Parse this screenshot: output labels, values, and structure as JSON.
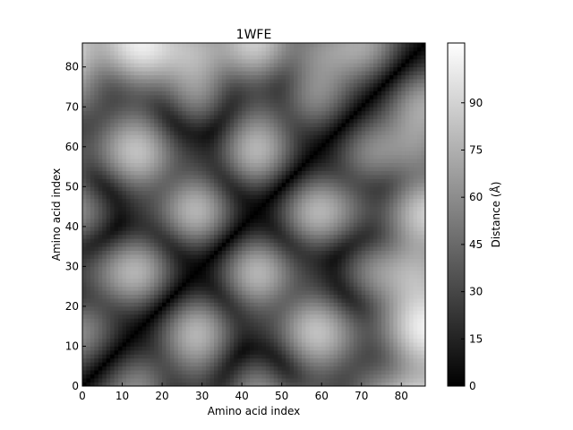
{
  "chart_data": {
    "type": "heatmap",
    "title": "1WFE",
    "xlabel": "Amino acid index",
    "ylabel": "Amino acid index",
    "n_residues": 86,
    "xlim": [
      0,
      86
    ],
    "ylim": [
      0,
      86
    ],
    "xticks": [
      0,
      10,
      20,
      30,
      40,
      50,
      60,
      70,
      80
    ],
    "yticks": [
      0,
      10,
      20,
      30,
      40,
      50,
      60,
      70,
      80
    ],
    "colormap": "gray",
    "symmetric": true,
    "diagonal_value": 0,
    "colorbar": {
      "label": "Distance (Å)",
      "min": 0,
      "max": 109,
      "ticks": [
        0,
        15,
        30,
        45,
        60,
        75,
        90
      ]
    },
    "grid": false
  }
}
